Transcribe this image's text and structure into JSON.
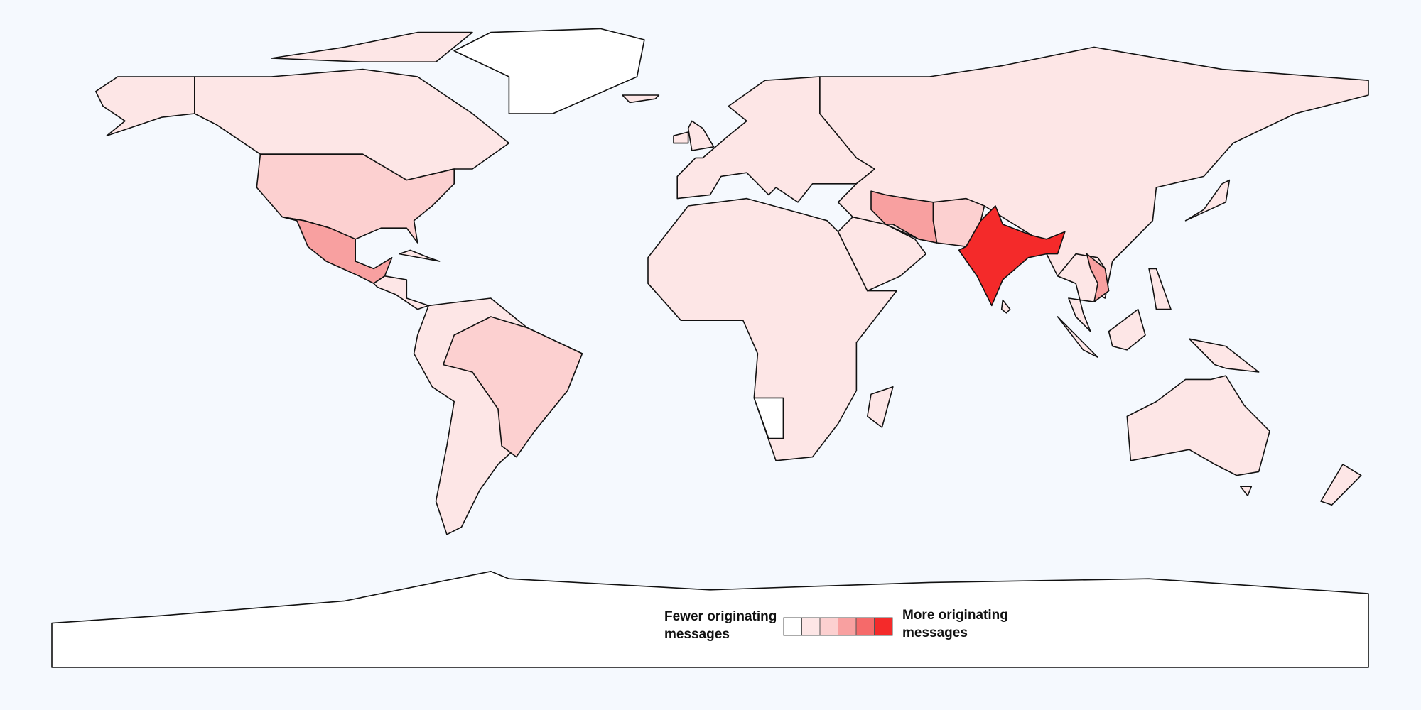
{
  "legend": {
    "low_label": "Fewer originating messages",
    "high_label": "More originating messages",
    "scale": [
      "#ffffff",
      "#fde6e6",
      "#fcd0d0",
      "#f8a0a0",
      "#f56a6a",
      "#f42a2a"
    ]
  }
}
